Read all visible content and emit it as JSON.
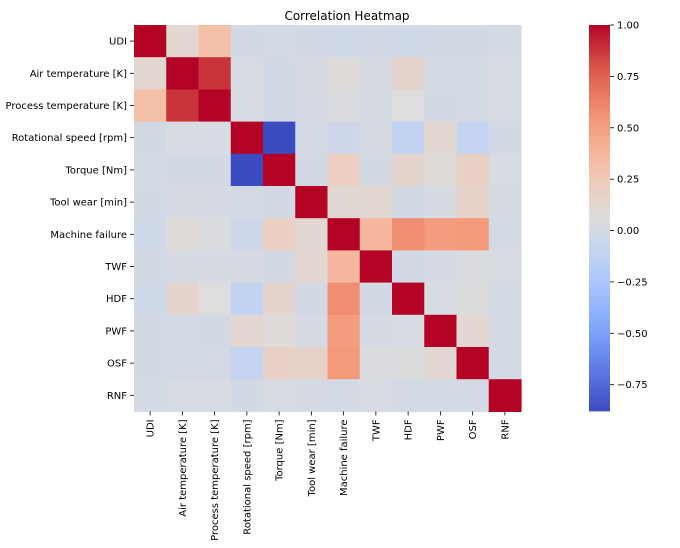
{
  "chart_data": {
    "type": "heatmap",
    "title": "Correlation Heatmap",
    "xlabel": "",
    "ylabel": "",
    "labels": [
      "UDI",
      "Air temperature [K]",
      "Process temperature [K]",
      "Rotational speed [rpm]",
      "Torque [Nm]",
      "Tool wear [min]",
      "Machine failure",
      "TWF",
      "HDF",
      "PWF",
      "OSF",
      "RNF"
    ],
    "matrix": [
      [
        1.0,
        0.12,
        0.32,
        -0.01,
        0.0,
        -0.01,
        -0.02,
        -0.01,
        -0.02,
        -0.01,
        -0.01,
        0.0
      ],
      [
        0.12,
        1.0,
        0.88,
        0.02,
        -0.01,
        0.01,
        0.08,
        0.01,
        0.14,
        0.0,
        0.0,
        0.02
      ],
      [
        0.32,
        0.88,
        1.0,
        0.02,
        -0.01,
        0.01,
        0.04,
        0.01,
        0.06,
        -0.01,
        0.0,
        0.02
      ],
      [
        -0.01,
        0.02,
        0.02,
        1.0,
        -0.88,
        0.0,
        -0.04,
        0.01,
        -0.12,
        0.12,
        -0.1,
        -0.01
      ],
      [
        0.0,
        -0.01,
        -0.01,
        -0.88,
        1.0,
        -0.01,
        0.19,
        -0.01,
        0.14,
        0.08,
        0.18,
        0.02
      ],
      [
        -0.01,
        0.01,
        0.01,
        0.0,
        -0.01,
        1.0,
        0.11,
        0.12,
        -0.01,
        0.01,
        0.16,
        0.01
      ],
      [
        -0.02,
        0.08,
        0.04,
        -0.04,
        0.19,
        0.11,
        1.0,
        0.36,
        0.58,
        0.52,
        0.53,
        0.0
      ],
      [
        -0.01,
        0.01,
        0.01,
        0.01,
        -0.01,
        0.12,
        0.36,
        1.0,
        -0.01,
        0.01,
        0.04,
        0.03
      ],
      [
        -0.02,
        0.14,
        0.06,
        -0.12,
        0.14,
        -0.01,
        0.58,
        -0.01,
        1.0,
        0.02,
        0.05,
        0.0
      ],
      [
        -0.01,
        0.0,
        -0.01,
        0.12,
        0.08,
        0.01,
        0.52,
        0.01,
        0.02,
        1.0,
        0.12,
        0.0
      ],
      [
        -0.01,
        0.0,
        0.0,
        -0.1,
        0.18,
        0.16,
        0.53,
        0.04,
        0.05,
        0.12,
        1.0,
        0.0
      ],
      [
        0.0,
        0.02,
        0.02,
        -0.01,
        0.02,
        0.01,
        0.0,
        0.03,
        0.0,
        0.0,
        0.0,
        1.0
      ]
    ],
    "colormap": "coolwarm",
    "colorbar": {
      "range": [
        -0.88,
        1.0
      ],
      "ticks": [
        "1.00",
        "0.75",
        "0.50",
        "0.25",
        "0.00",
        "−0.25",
        "−0.50",
        "−0.75"
      ],
      "tick_values": [
        1.0,
        0.75,
        0.5,
        0.25,
        0.0,
        -0.25,
        -0.5,
        -0.75
      ]
    },
    "grid": false,
    "legend": "colorbar-right"
  }
}
